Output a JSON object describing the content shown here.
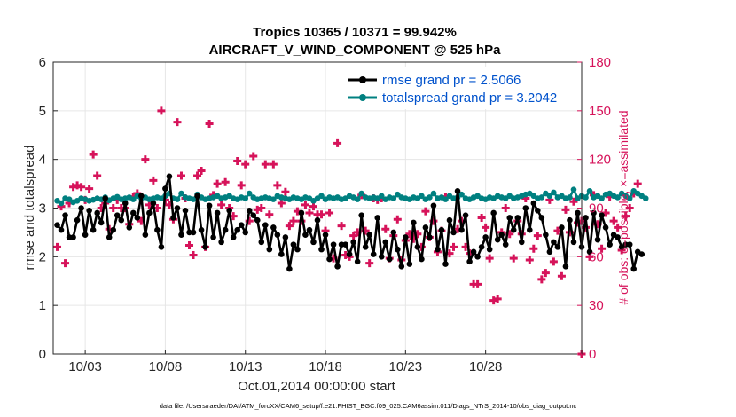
{
  "chart_data": {
    "type": "line",
    "title_line1": "Tropics 10365 / 10371 = 99.942%",
    "title_line2": "AIRCRAFT_V_WIND_COMPONENT @ 525 hPa",
    "xlabel": "Oct.01,2014 00:00:00 start",
    "ylabel": "rmse and totalspread",
    "y2label": "# of obs: o=possible; ×=assimilated",
    "xlim": [
      0,
      33
    ],
    "ylim": [
      0,
      6
    ],
    "y2lim": [
      0,
      180
    ],
    "x_ticks": [
      {
        "pos": 2,
        "label": "10/03"
      },
      {
        "pos": 7,
        "label": "10/08"
      },
      {
        "pos": 12,
        "label": "10/13"
      },
      {
        "pos": 17,
        "label": "10/18"
      },
      {
        "pos": 22,
        "label": "10/23"
      },
      {
        "pos": 27,
        "label": "10/28"
      }
    ],
    "y_ticks": [
      "0",
      "1",
      "2",
      "3",
      "4",
      "5",
      "6"
    ],
    "y2_ticks": [
      "0",
      "30",
      "60",
      "90",
      "120",
      "150",
      "180"
    ],
    "legend": [
      {
        "label": "rmse grand pr = 2.5066",
        "color": "#000000"
      },
      {
        "label": "totalspread grand pr = 3.2042",
        "color": "#008080"
      }
    ],
    "series": [
      {
        "name": "rmse",
        "color": "#000000",
        "x_step": 0.25,
        "values": [
          2.65,
          2.55,
          2.85,
          2.4,
          2.4,
          2.75,
          3.0,
          2.45,
          2.95,
          2.55,
          2.9,
          2.7,
          3.2,
          2.4,
          2.55,
          2.85,
          2.75,
          3.1,
          2.6,
          2.9,
          2.8,
          3.25,
          2.45,
          2.9,
          3.1,
          2.55,
          2.2,
          3.4,
          3.65,
          2.8,
          3.0,
          2.45,
          2.95,
          2.5,
          2.5,
          3.25,
          2.55,
          2.2,
          3.05,
          2.4,
          2.9,
          2.3,
          2.55,
          2.95,
          2.4,
          2.55,
          2.65,
          2.5,
          2.95,
          2.85,
          2.75,
          2.3,
          2.65,
          2.15,
          2.6,
          2.45,
          2.05,
          2.4,
          1.75,
          2.25,
          2.15,
          2.9,
          2.45,
          2.55,
          2.3,
          2.75,
          2.15,
          2.45,
          1.95,
          2.25,
          1.8,
          2.25,
          2.25,
          2.05,
          2.3,
          1.9,
          2.85,
          2.2,
          2.45,
          2.05,
          2.8,
          2.0,
          2.3,
          1.95,
          2.5,
          2.15,
          1.8,
          2.4,
          1.85,
          2.7,
          2.2,
          1.95,
          2.6,
          2.4,
          3.05,
          2.15,
          2.55,
          1.85,
          2.75,
          2.5,
          3.35,
          2.55,
          2.85,
          1.9,
          2.1,
          2.0,
          2.2,
          2.4,
          2.15,
          2.9,
          2.35,
          2.45,
          2.25,
          2.8,
          2.55,
          2.8,
          2.3,
          3.0,
          2.55,
          3.1,
          2.95,
          2.8,
          2.45,
          2.1,
          2.3,
          2.2,
          2.6,
          1.8,
          2.75,
          2.3,
          2.9,
          2.2,
          2.8,
          2.1,
          2.9,
          2.35,
          2.85,
          2.6,
          2.25,
          2.45,
          2.4,
          2.2,
          2.25,
          2.25,
          1.75,
          2.1,
          2.05
        ],
        "marker": "circle"
      },
      {
        "name": "totalspread",
        "color": "#008080",
        "x_step": 0.25,
        "values": [
          3.15,
          3.1,
          3.2,
          3.18,
          3.12,
          3.15,
          3.2,
          3.18,
          3.15,
          3.17,
          3.2,
          3.18,
          3.22,
          3.16,
          3.2,
          3.23,
          3.18,
          3.2,
          3.22,
          3.18,
          3.25,
          3.2,
          3.22,
          3.18,
          3.2,
          3.22,
          3.2,
          3.25,
          3.3,
          3.2,
          3.18,
          3.3,
          3.22,
          3.2,
          3.18,
          3.28,
          3.22,
          3.18,
          3.2,
          3.22,
          3.25,
          3.2,
          3.22,
          3.25,
          3.2,
          3.18,
          3.22,
          3.2,
          3.3,
          3.22,
          3.18,
          3.2,
          3.22,
          3.2,
          3.18,
          3.25,
          3.22,
          3.2,
          3.18,
          3.22,
          3.2,
          3.18,
          3.22,
          3.2,
          3.15,
          3.2,
          3.25,
          3.18,
          3.22,
          3.2,
          3.22,
          3.18,
          3.2,
          3.25,
          3.22,
          3.18,
          3.3,
          3.22,
          3.2,
          3.22,
          3.2,
          3.25,
          3.18,
          3.22,
          3.2,
          3.28,
          3.22,
          3.2,
          3.18,
          3.22,
          3.2,
          3.25,
          3.18,
          3.22,
          3.3,
          3.2,
          3.22,
          3.18,
          3.25,
          3.2,
          3.22,
          3.28,
          3.2,
          3.18,
          3.22,
          3.25,
          3.2,
          3.18,
          3.22,
          3.2,
          3.25,
          3.22,
          3.2,
          3.25,
          3.2,
          3.22,
          3.25,
          3.28,
          3.3,
          3.25,
          3.2,
          3.22,
          3.3,
          3.25,
          3.32,
          3.22,
          3.25,
          3.2,
          3.22,
          3.38,
          3.2,
          3.25,
          3.22,
          3.35,
          3.22,
          3.25,
          3.2,
          3.28,
          3.3,
          3.25,
          3.22,
          3.3,
          3.25,
          3.2,
          3.35,
          3.3,
          3.25,
          3.2
        ],
        "marker": "circle"
      },
      {
        "name": "obs possible/assimilated",
        "axis": "right",
        "color": "#d6135a",
        "marker": "plus",
        "x_step": 0.25,
        "values": [
          66,
          91,
          56,
          93,
          103,
          104,
          103,
          95,
          102,
          123,
          110,
          90,
          93,
          77,
          90,
          95,
          90,
          90,
          80,
          97,
          99,
          82,
          120,
          92,
          107,
          90,
          150,
          95,
          92,
          83,
          143,
          110,
          96,
          67,
          61,
          110,
          113,
          66,
          142,
          98,
          105,
          92,
          106,
          90,
          85,
          119,
          104,
          117,
          82,
          122,
          89,
          90,
          117,
          86,
          117,
          104,
          93,
          100,
          79,
          82,
          88,
          82,
          92,
          87,
          91,
          86,
          86,
          76,
          87,
          59,
          130,
          79,
          61,
          60,
          73,
          75,
          98,
          76,
          56,
          96,
          95,
          96,
          77,
          59,
          73,
          83,
          58,
          70,
          74,
          71,
          74,
          66,
          88,
          72,
          82,
          63,
          76,
          97,
          62,
          66,
          77,
          82,
          66,
          62,
          43,
          43,
          84,
          78,
          59,
          33,
          34,
          75,
          90,
          74,
          59,
          82,
          74,
          96,
          58,
          65,
          73,
          46,
          50,
          95,
          57,
          76,
          48,
          89,
          75,
          94,
          81,
          82,
          78,
          60,
          98,
          80,
          65,
          87,
          97,
          82,
          78,
          64,
          85,
          90,
          99,
          105
        ]
      },
      {
        "name": "obs assimilated end",
        "axis": "right",
        "color": "#d6135a",
        "marker": "plus",
        "points": [
          [
            33,
            0
          ]
        ]
      }
    ]
  },
  "footer": {
    "datafile": "data file: /Users/raeder/DAI/ATM_forcXX/CAM6_setup/f.e21.FHIST_BGC.f09_025.CAM6assim.011/Diags_NTrS_2014-10/obs_diag_output.nc"
  }
}
